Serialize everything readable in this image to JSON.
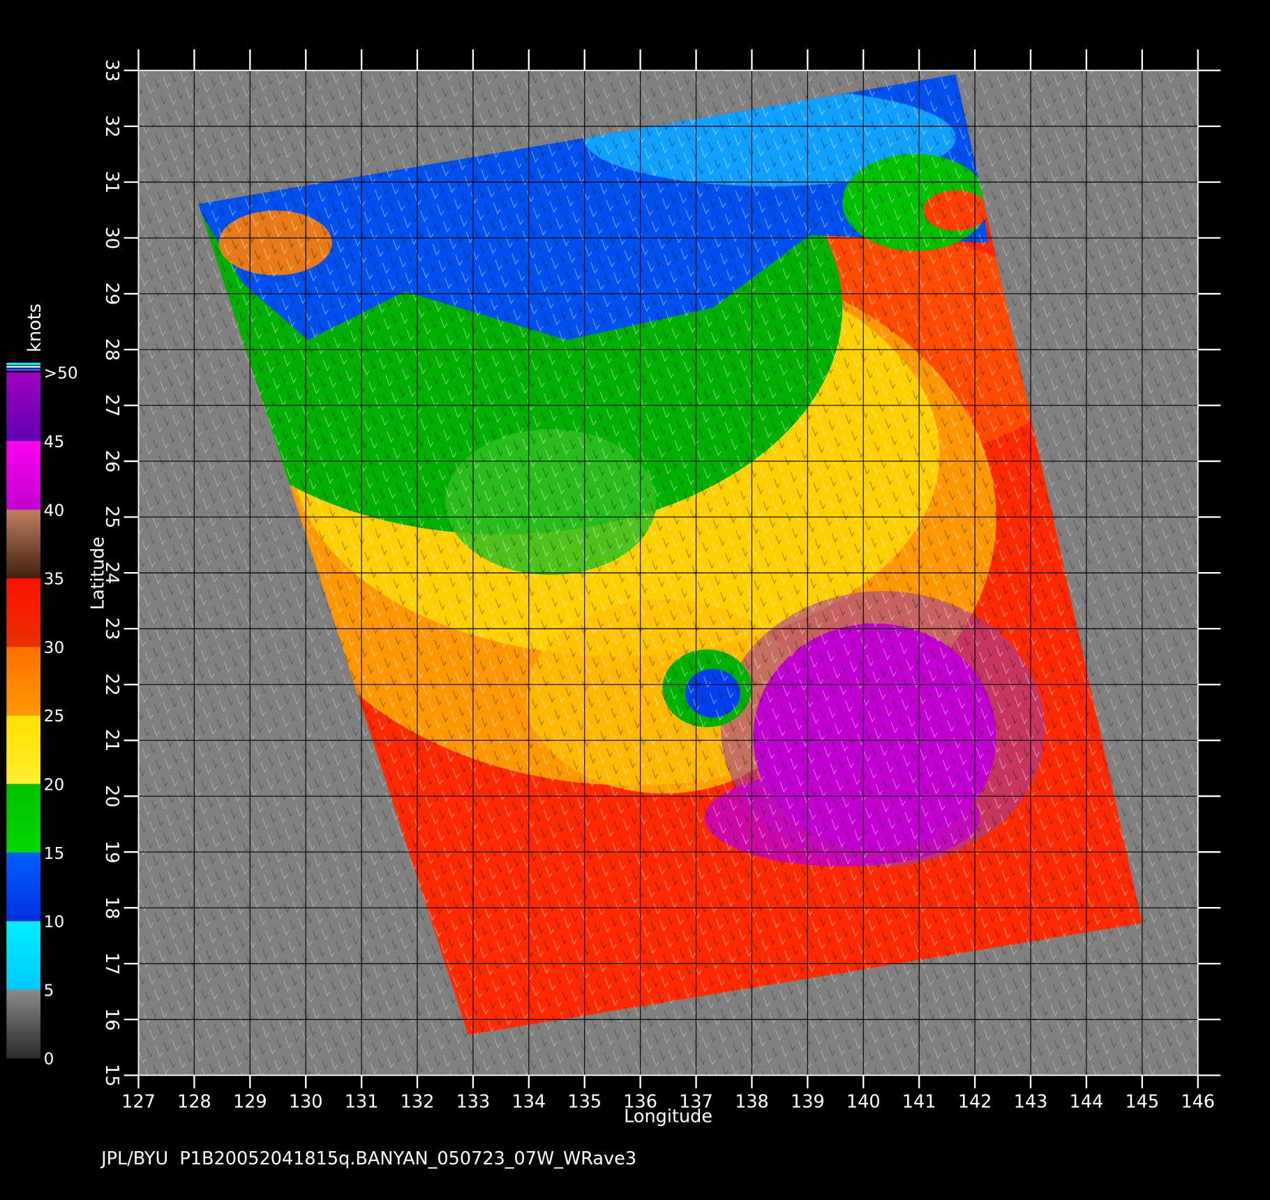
{
  "map": {
    "xlabel": "Longitude",
    "ylabel": "Latitude",
    "xlim": [
      127,
      146
    ],
    "ylim": [
      15,
      33
    ],
    "xticks": [
      127,
      128,
      129,
      130,
      131,
      132,
      133,
      134,
      135,
      136,
      137,
      138,
      139,
      140,
      141,
      142,
      143,
      144,
      145,
      146
    ],
    "yticks": [
      15,
      16,
      17,
      18,
      19,
      20,
      21,
      22,
      23,
      24,
      25,
      26,
      27,
      28,
      29,
      30,
      31,
      32,
      33
    ],
    "grid": true
  },
  "colorbar": {
    "title": "knots",
    "ticks": [
      0,
      5,
      10,
      15,
      20,
      25,
      30,
      35,
      40,
      45,
      {
        "value": 50,
        "label": ">50"
      }
    ],
    "colors": [
      [
        "#8a8a8a",
        "#2a2a2a"
      ],
      [
        "#00eeff",
        "#00c8ff"
      ],
      [
        "#0060ff",
        "#0030e0"
      ],
      [
        "#00c000",
        "#00d800"
      ],
      [
        "#ffe000",
        "#ffee30"
      ],
      [
        "#ff7000",
        "#ff9800"
      ],
      [
        "#ff1000",
        "#e83000"
      ],
      [
        "#c08060",
        "#402010"
      ],
      [
        "#ff00f0",
        "#c000d0"
      ],
      [
        "#a000c0",
        "#6000b0"
      ]
    ]
  },
  "footer": "JPL/BYU  P1B20052041815q.BANYAN_050723_07W_WRave3"
}
